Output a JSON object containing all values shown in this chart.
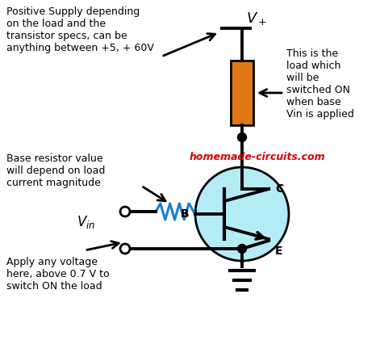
{
  "bg_color": "#ffffff",
  "transistor_circle_color": "#b3ecf5",
  "transistor_circle_edge": "#000000",
  "load_rect_color": "#e07818",
  "wire_color": "#000000",
  "resistor_color": "#1a7fd4",
  "title_text": "homemade-circuits.com",
  "title_color": "#dd0000",
  "ann_supply": "Positive Supply depending\non the load and the\ntransistor specs, can be\nanything between +5, + 60V",
  "ann_base": "Base resistor value\nwill depend on load\ncurrent magnitude",
  "ann_apply": "Apply any voltage\nhere, above 0.7 V to\nswitch ON the load",
  "ann_load": "This is the\nload which\nwill be\nswitched ON\nwhen base\nVin is applied",
  "fontsize_ann": 9.0
}
